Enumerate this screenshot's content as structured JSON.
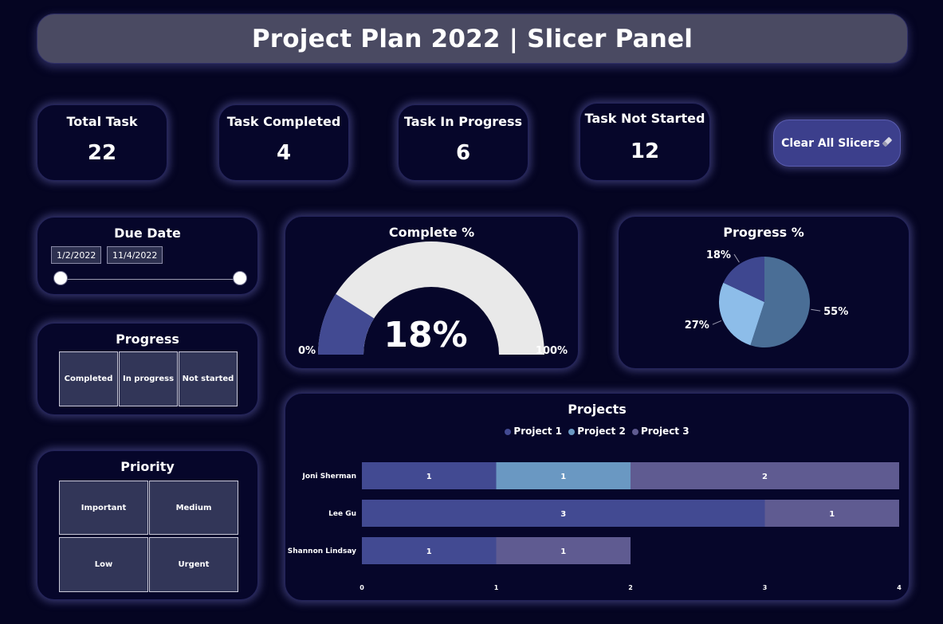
{
  "header": {
    "title": "Project Plan 2022 | Slicer Panel"
  },
  "kpis": [
    {
      "label": "Total Task",
      "value": "22"
    },
    {
      "label": "Task Completed",
      "value": "4"
    },
    {
      "label": "Task In Progress",
      "value": "6"
    },
    {
      "label": "Task Not Started",
      "value": "12"
    }
  ],
  "clear_button": {
    "label": "Clear All Slicers",
    "icon": "eraser-icon"
  },
  "due_date": {
    "title": "Due Date",
    "start": "1/2/2022",
    "end": "11/4/2022"
  },
  "progress_slicer": {
    "title": "Progress",
    "options": [
      "Completed",
      "In progress",
      "Not started"
    ]
  },
  "priority_slicer": {
    "title": "Priority",
    "options": [
      "Important",
      "Medium",
      "Low",
      "Urgent"
    ]
  },
  "colors": {
    "background": "#050522",
    "project1": "#424a92",
    "project2": "#6a98c2",
    "project3": "#5f5b91",
    "gauge_fill": "#424a92",
    "gauge_track": "#e9e9e9"
  },
  "chart_data": [
    {
      "type": "gauge",
      "title": "Complete %",
      "value": 18,
      "value_label": "18%",
      "min_label": "0%",
      "max_label": "100%",
      "range": [
        0,
        100
      ]
    },
    {
      "type": "pie",
      "title": "Progress %",
      "slices": [
        {
          "label": "55%",
          "value": 55,
          "color": "#4a6e96"
        },
        {
          "label": "27%",
          "value": 27,
          "color": "#8dbde9"
        },
        {
          "label": "18%",
          "value": 18,
          "color": "#3e4790"
        }
      ]
    },
    {
      "type": "bar",
      "orientation": "horizontal",
      "stacked": true,
      "title": "Projects",
      "categories": [
        "Joni Sherman",
        "Lee Gu",
        "Shannon Lindsay"
      ],
      "series": [
        {
          "name": "Project 1",
          "values": [
            1,
            3,
            1
          ],
          "color": "#424a92"
        },
        {
          "name": "Project 2",
          "values": [
            1,
            0,
            0
          ],
          "color": "#6a98c2"
        },
        {
          "name": "Project 3",
          "values": [
            2,
            1,
            1
          ],
          "color": "#5f5b91"
        }
      ],
      "xlim": [
        0,
        4
      ],
      "xticks": [
        "0",
        "1",
        "2",
        "3",
        "4"
      ],
      "legend_position": "top"
    }
  ]
}
